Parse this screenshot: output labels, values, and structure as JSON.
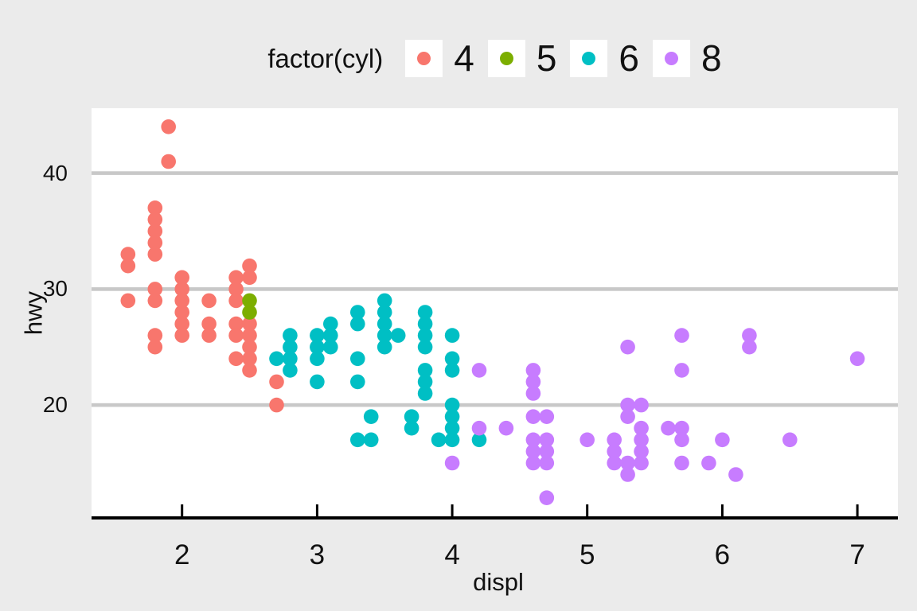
{
  "figure": {
    "background": "#EBEBEB",
    "panel_background": "#FFFFFF",
    "gridline_color": "#C8C8C8",
    "axis_line_color": "#000000",
    "tick_color": "#000000",
    "text_color": "#111111"
  },
  "chart_data": {
    "type": "scatter",
    "title": "",
    "legend_title": "factor(cyl)",
    "legend_position": "top-center",
    "xlabel": "displ",
    "ylabel": "hwy",
    "x_ticks": [
      2,
      3,
      4,
      5,
      6,
      7
    ],
    "y_ticks": [
      20,
      30,
      40
    ],
    "xlim": [
      1.33,
      7.3
    ],
    "ylim": [
      10.4,
      45.6
    ],
    "grid": "horizontal-major-only",
    "point_radius_px": 9.3,
    "series": [
      {
        "name": "4",
        "cyl": 4,
        "color": "#F8766D",
        "points": [
          [
            1.6,
            33
          ],
          [
            1.6,
            32
          ],
          [
            1.6,
            29
          ],
          [
            1.8,
            37
          ],
          [
            1.8,
            36
          ],
          [
            1.8,
            35
          ],
          [
            1.8,
            34
          ],
          [
            1.8,
            33
          ],
          [
            1.8,
            30
          ],
          [
            1.8,
            29
          ],
          [
            1.8,
            26
          ],
          [
            1.8,
            25
          ],
          [
            1.9,
            44
          ],
          [
            1.9,
            41
          ],
          [
            2.0,
            31
          ],
          [
            2.0,
            30
          ],
          [
            2.0,
            29
          ],
          [
            2.0,
            28
          ],
          [
            2.0,
            27
          ],
          [
            2.0,
            26
          ],
          [
            2.2,
            29
          ],
          [
            2.2,
            27
          ],
          [
            2.2,
            26
          ],
          [
            2.4,
            31
          ],
          [
            2.4,
            30
          ],
          [
            2.4,
            29
          ],
          [
            2.4,
            27
          ],
          [
            2.4,
            26
          ],
          [
            2.4,
            24
          ],
          [
            2.5,
            32
          ],
          [
            2.5,
            31
          ],
          [
            2.5,
            27
          ],
          [
            2.5,
            26
          ],
          [
            2.5,
            25
          ],
          [
            2.5,
            24
          ],
          [
            2.5,
            23
          ],
          [
            2.7,
            22
          ],
          [
            2.7,
            20
          ]
        ]
      },
      {
        "name": "5",
        "cyl": 5,
        "color": "#7CAE00",
        "points": [
          [
            2.5,
            29
          ],
          [
            2.5,
            28
          ]
        ]
      },
      {
        "name": "6",
        "cyl": 6,
        "color": "#00BFC4",
        "points": [
          [
            2.7,
            24
          ],
          [
            2.8,
            26
          ],
          [
            2.8,
            25
          ],
          [
            2.8,
            24
          ],
          [
            2.8,
            23
          ],
          [
            3.0,
            26
          ],
          [
            3.0,
            25
          ],
          [
            3.0,
            24
          ],
          [
            3.0,
            22
          ],
          [
            3.1,
            27
          ],
          [
            3.1,
            26
          ],
          [
            3.1,
            25
          ],
          [
            3.3,
            28
          ],
          [
            3.3,
            27
          ],
          [
            3.3,
            24
          ],
          [
            3.3,
            22
          ],
          [
            3.3,
            17
          ],
          [
            3.4,
            19
          ],
          [
            3.4,
            17
          ],
          [
            3.5,
            29
          ],
          [
            3.5,
            28
          ],
          [
            3.5,
            27
          ],
          [
            3.5,
            26
          ],
          [
            3.5,
            25
          ],
          [
            3.6,
            26
          ],
          [
            3.7,
            19
          ],
          [
            3.7,
            18
          ],
          [
            3.8,
            28
          ],
          [
            3.8,
            27
          ],
          [
            3.8,
            26
          ],
          [
            3.8,
            25
          ],
          [
            3.8,
            23
          ],
          [
            3.8,
            22
          ],
          [
            3.8,
            21
          ],
          [
            3.9,
            17
          ],
          [
            4.0,
            26
          ],
          [
            4.0,
            24
          ],
          [
            4.0,
            23
          ],
          [
            4.0,
            20
          ],
          [
            4.0,
            19
          ],
          [
            4.0,
            18
          ],
          [
            4.0,
            17
          ],
          [
            4.2,
            17
          ]
        ]
      },
      {
        "name": "8",
        "cyl": 8,
        "color": "#C77CFF",
        "points": [
          [
            4.0,
            15
          ],
          [
            4.2,
            23
          ],
          [
            4.2,
            18
          ],
          [
            4.4,
            18
          ],
          [
            4.6,
            23
          ],
          [
            4.6,
            22
          ],
          [
            4.6,
            21
          ],
          [
            4.6,
            19
          ],
          [
            4.6,
            17
          ],
          [
            4.6,
            16
          ],
          [
            4.6,
            15
          ],
          [
            4.7,
            19
          ],
          [
            4.7,
            17
          ],
          [
            4.7,
            16
          ],
          [
            4.7,
            15
          ],
          [
            4.7,
            12
          ],
          [
            5.0,
            17
          ],
          [
            5.2,
            17
          ],
          [
            5.2,
            16
          ],
          [
            5.2,
            15
          ],
          [
            5.3,
            25
          ],
          [
            5.3,
            20
          ],
          [
            5.3,
            19
          ],
          [
            5.3,
            15
          ],
          [
            5.3,
            14
          ],
          [
            5.4,
            20
          ],
          [
            5.4,
            18
          ],
          [
            5.4,
            17
          ],
          [
            5.4,
            16
          ],
          [
            5.4,
            15
          ],
          [
            5.6,
            18
          ],
          [
            5.7,
            26
          ],
          [
            5.7,
            23
          ],
          [
            5.7,
            18
          ],
          [
            5.7,
            17
          ],
          [
            5.7,
            15
          ],
          [
            5.9,
            15
          ],
          [
            6.0,
            17
          ],
          [
            6.1,
            14
          ],
          [
            6.2,
            26
          ],
          [
            6.2,
            25
          ],
          [
            6.5,
            17
          ],
          [
            7.0,
            24
          ]
        ]
      }
    ]
  }
}
